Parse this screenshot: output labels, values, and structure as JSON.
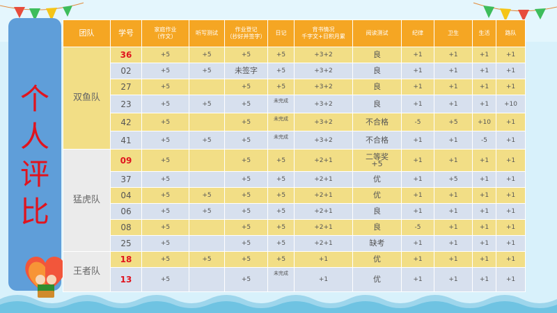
{
  "page_title": [
    "个",
    "人",
    "评",
    "比"
  ],
  "table": {
    "headers": [
      [
        "团队"
      ],
      [
        "学号"
      ],
      [
        "家庭作业",
        "（作文）"
      ],
      [
        "听写测试"
      ],
      [
        "作业登记",
        "（抄好并签字）"
      ],
      [
        "日记"
      ],
      [
        "背书情况",
        "千字文+日积月累"
      ],
      [
        "阅读测试"
      ],
      [
        "纪律"
      ],
      [
        "卫生"
      ],
      [
        "生活"
      ],
      [
        "路队"
      ]
    ],
    "teams": [
      {
        "name": "双鱼队",
        "rows": [
          {
            "id": "36",
            "id_red": true,
            "tone": "y",
            "cells": [
              "+5",
              "+5",
              "+5",
              "+5",
              "+3+2",
              "良",
              "+1",
              "+1",
              "+1",
              "+1"
            ]
          },
          {
            "id": "02",
            "tone": "g",
            "cells": [
              "+5",
              "+5",
              "未签字",
              "+5",
              "+3+2",
              "良",
              "+1",
              "+1",
              "+1",
              "+1"
            ]
          },
          {
            "id": "27",
            "tone": "y",
            "cells": [
              "+5",
              "",
              "+5",
              "+5",
              "+3+2",
              "良",
              "+1",
              "+1",
              "+1",
              "+1"
            ]
          },
          {
            "id": "23",
            "tone": "g",
            "cells": [
              "+5",
              "+5",
              "+5",
              "未完成",
              "+3+2",
              "良",
              "+1",
              "+1",
              "+1",
              "+10"
            ]
          },
          {
            "id": "42",
            "tone": "y",
            "cells": [
              "+5",
              "",
              "+5",
              "未完成",
              "+3+2",
              "不合格",
              "-5",
              "+5",
              "+10",
              "+1"
            ]
          },
          {
            "id": "41",
            "tone": "g",
            "cells": [
              "+5",
              "+5",
              "+5",
              "未完成",
              "+3+2",
              "不合格",
              "+1",
              "+1",
              "-5",
              "+1"
            ]
          }
        ]
      },
      {
        "name": "猛虎队",
        "rows": [
          {
            "id": "09",
            "id_red": true,
            "tone": "y",
            "tall": true,
            "cells": [
              "+5",
              "",
              "+5",
              "+5",
              "+2+1",
              "二等奖\n+5",
              "+1",
              "+1",
              "+1",
              "+1"
            ]
          },
          {
            "id": "37",
            "tone": "g",
            "cells": [
              "+5",
              "",
              "+5",
              "+5",
              "+2+1",
              "优",
              "+1",
              "+5",
              "+1",
              "+1"
            ]
          },
          {
            "id": "04",
            "tone": "y",
            "cells": [
              "+5",
              "+5",
              "+5",
              "+5",
              "+2+1",
              "优",
              "+1",
              "+1",
              "+1",
              "+1"
            ]
          },
          {
            "id": "06",
            "tone": "g",
            "cells": [
              "+5",
              "+5",
              "+5",
              "+5",
              "+2+1",
              "良",
              "+1",
              "+1",
              "+1",
              "+1"
            ]
          },
          {
            "id": "08",
            "tone": "y",
            "cells": [
              "+5",
              "",
              "+5",
              "+5",
              "+2+1",
              "良",
              "-5",
              "+1",
              "+1",
              "+1"
            ]
          },
          {
            "id": "25",
            "tone": "g",
            "cells": [
              "+5",
              "",
              "+5",
              "+5",
              "+2+1",
              "缺考",
              "+1",
              "+1",
              "+1",
              "+1"
            ]
          }
        ]
      },
      {
        "name": "王者队",
        "rows": [
          {
            "id": "18",
            "id_red": true,
            "tone": "y",
            "cells": [
              "+5",
              "+5",
              "+5",
              "+5",
              "+1",
              "优",
              "+1",
              "+1",
              "+1",
              "+1"
            ]
          },
          {
            "id": "13",
            "id_red": true,
            "tone": "g",
            "tall": true,
            "cells": [
              "+5",
              "",
              "+5",
              "未完成",
              "+1",
              "优",
              "+1",
              "+1",
              "+1",
              "+1"
            ]
          }
        ]
      }
    ]
  },
  "colors": {
    "header_bg": "#f5a623",
    "row_yellow": "#f2de86",
    "row_gray_blue": "#d7e0ee",
    "title_red": "#e0141e",
    "side_panel": "#5f9ed9"
  },
  "decorations": [
    "bunting-flags",
    "heart-balloon-with-kids",
    "wave-border"
  ]
}
